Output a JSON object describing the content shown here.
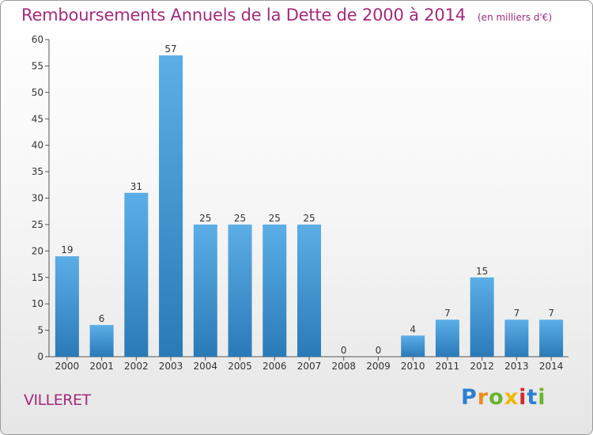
{
  "chart_data": {
    "type": "bar",
    "title": "Remboursements Annuels de la Dette de 2000 à 2014",
    "unit_note": "(en milliers d'€)",
    "categories": [
      "2000",
      "2001",
      "2002",
      "2003",
      "2004",
      "2005",
      "2006",
      "2007",
      "2008",
      "2009",
      "2010",
      "2011",
      "2012",
      "2013",
      "2014"
    ],
    "values": [
      19,
      6,
      31,
      57,
      25,
      25,
      25,
      25,
      0,
      0,
      4,
      7,
      15,
      7,
      7
    ],
    "yticks": [
      0,
      5,
      10,
      15,
      20,
      25,
      30,
      35,
      40,
      45,
      50,
      55,
      60
    ],
    "ylim": [
      0,
      60
    ],
    "xlabel": "",
    "ylabel": "",
    "grid": false,
    "bar_color_top": "#5baee6",
    "bar_color_bottom": "#2a7ab8"
  },
  "commune": "VILLERET",
  "logo": {
    "letters": [
      "P",
      "r",
      "o",
      "x",
      "i",
      "t",
      "i"
    ]
  }
}
